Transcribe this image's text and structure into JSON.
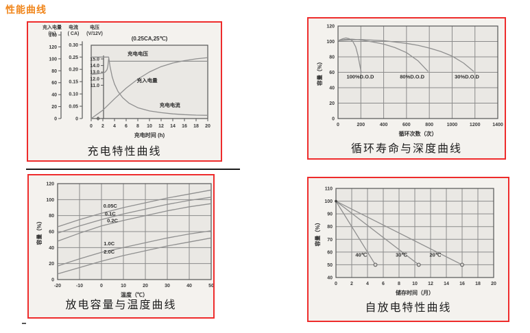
{
  "page": {
    "title": "性能曲线"
  },
  "colors": {
    "title_orange": "#f0851a",
    "panel_border_red": "#ee2b2b",
    "panel_bg": "#f4f2ee",
    "plot_bg": "#eae8e4",
    "grid_gray": "#8a8a8a",
    "curve_gray": "#8f8f8f",
    "axis_dark": "#555555"
  },
  "chart_data": [
    {
      "type": "line",
      "caption": "充电特性曲线",
      "title": "(0.25CA,25℃)",
      "xlabel": "充电时间 (h)",
      "x": {
        "min": 0,
        "max": 20,
        "step": 2
      },
      "y_axes": [
        {
          "title": "充入电量",
          "unit": "(%)",
          "ticks": [
            "0",
            "20",
            "40",
            "60",
            "80",
            "100",
            "120",
            "140"
          ]
        },
        {
          "title": "电流",
          "unit": "( CA)",
          "ticks": [
            "0",
            "0.05",
            "0.10",
            "0.15",
            "0.20",
            "0.25",
            "0.30"
          ]
        },
        {
          "title": "电压",
          "unit": "(V/12V)",
          "ticks": [
            "0",
            "11.0",
            "12.0",
            "13.0",
            "14.0",
            "15.0"
          ]
        }
      ],
      "grid": "none",
      "series": [
        {
          "name": "充电电压",
          "axis": "voltage",
          "points": [
            [
              0,
              12.65
            ],
            [
              1,
              12.72
            ],
            [
              2,
              12.85
            ],
            [
              2.4,
              13.0
            ],
            [
              2.7,
              13.35
            ],
            [
              2.85,
              13.8
            ],
            [
              3,
              15.05
            ],
            [
              3.1,
              14.65
            ],
            [
              20,
              14.65
            ]
          ],
          "label_pos": [
            8,
            15.5
          ]
        },
        {
          "name": "充入电量",
          "axis": "capacity",
          "points": [
            [
              0,
              0
            ],
            [
              2,
              14
            ],
            [
              4,
              33
            ],
            [
              6,
              51
            ],
            [
              8,
              66
            ],
            [
              10,
              78
            ],
            [
              12,
              87
            ],
            [
              14,
              93
            ],
            [
              16,
              97
            ],
            [
              18,
              100
            ],
            [
              20,
              102
            ]
          ],
          "label_pos": [
            9.6,
            61
          ]
        },
        {
          "name": "充电电流",
          "axis": "current",
          "points": [
            [
              0,
              0.25
            ],
            [
              3,
              0.25
            ],
            [
              3.25,
              0.21
            ],
            [
              3.6,
              0.17
            ],
            [
              4,
              0.14
            ],
            [
              4.6,
              0.11
            ],
            [
              5.4,
              0.085
            ],
            [
              6.5,
              0.062
            ],
            [
              8,
              0.044
            ],
            [
              10,
              0.031
            ],
            [
              12,
              0.024
            ],
            [
              14,
              0.019
            ],
            [
              16,
              0.016
            ],
            [
              18,
              0.014
            ],
            [
              20,
              0.013
            ]
          ],
          "label_pos": [
            13.5,
            0.048
          ]
        }
      ]
    },
    {
      "type": "line",
      "caption": "循环寿命与深度曲线",
      "xlabel": "循环次数（次）",
      "ylabel": "容量（%）",
      "x": {
        "min": 0,
        "max": 1400,
        "step": 200
      },
      "y": {
        "min": 0,
        "max": 120,
        "step": 20
      },
      "grid": "full",
      "series": [
        {
          "name": "100%D.O.D",
          "points": [
            [
              0,
              101
            ],
            [
              40,
              103.5
            ],
            [
              70,
              104.5
            ],
            [
              100,
              103.5
            ],
            [
              130,
              100
            ],
            [
              155,
              93
            ],
            [
              175,
              82
            ],
            [
              190,
              70
            ],
            [
              203,
              60
            ]
          ],
          "label_pos": [
            195,
            52
          ]
        },
        {
          "name": "80%D.O.D",
          "points": [
            [
              0,
              101
            ],
            [
              60,
              102.5
            ],
            [
              120,
              103
            ],
            [
              200,
              102
            ],
            [
              300,
              99.5
            ],
            [
              400,
              96.5
            ],
            [
              500,
              92
            ],
            [
              600,
              85.5
            ],
            [
              700,
              75
            ],
            [
              790,
              61
            ]
          ],
          "label_pos": [
            650,
            52
          ]
        },
        {
          "name": "30%D.O.D",
          "points": [
            [
              0,
              101
            ],
            [
              100,
              102
            ],
            [
              200,
              102.5
            ],
            [
              400,
              101
            ],
            [
              600,
              97.5
            ],
            [
              700,
              95
            ],
            [
              800,
              91.5
            ],
            [
              900,
              87
            ],
            [
              1000,
              81
            ],
            [
              1100,
              72
            ],
            [
              1190,
              61
            ]
          ],
          "label_pos": [
            1130,
            52
          ]
        }
      ]
    },
    {
      "type": "line",
      "caption": "放电容量与温度曲线",
      "xlabel": "温度（℃）",
      "ylabel": "容量（%）",
      "x": {
        "min": -20,
        "max": 50,
        "step": 10
      },
      "y": {
        "min": 0,
        "max": 120,
        "step": 20
      },
      "grid": "full",
      "series": [
        {
          "name": "0.05C",
          "points": [
            [
              -20,
              66
            ],
            [
              -10,
              75
            ],
            [
              0,
              83
            ],
            [
              10,
              90
            ],
            [
              20,
              96
            ],
            [
              30,
              102
            ],
            [
              40,
              107
            ],
            [
              50,
              112
            ]
          ],
          "label_pos": [
            4,
            90
          ]
        },
        {
          "name": "0.1C",
          "points": [
            [
              -20,
              58
            ],
            [
              -10,
              67
            ],
            [
              0,
              75
            ],
            [
              10,
              82
            ],
            [
              20,
              88
            ],
            [
              30,
              94
            ],
            [
              40,
              99
            ],
            [
              50,
              103
            ]
          ],
          "label_pos": [
            4,
            80
          ]
        },
        {
          "name": "0.2C",
          "points": [
            [
              -20,
              48
            ],
            [
              -10,
              58
            ],
            [
              0,
              67
            ],
            [
              10,
              74
            ],
            [
              20,
              80
            ],
            [
              30,
              86
            ],
            [
              40,
              91
            ],
            [
              50,
              95
            ]
          ],
          "label_pos": [
            5,
            71.5
          ]
        },
        {
          "name": "1.0C",
          "points": [
            [
              -20,
              17
            ],
            [
              -10,
              26
            ],
            [
              0,
              34
            ],
            [
              10,
              40
            ],
            [
              20,
              46
            ],
            [
              30,
              52
            ],
            [
              40,
              57
            ],
            [
              50,
              61
            ]
          ],
          "label_pos": [
            3.5,
            43
          ]
        },
        {
          "name": "2.0C",
          "points": [
            [
              -20,
              7
            ],
            [
              -10,
              15
            ],
            [
              0,
              23
            ],
            [
              10,
              30
            ],
            [
              20,
              36
            ],
            [
              30,
              42
            ],
            [
              40,
              47
            ],
            [
              50,
              52
            ]
          ],
          "label_pos": [
            3.5,
            32.5
          ]
        }
      ]
    },
    {
      "type": "line",
      "caption": "自放电特性曲线",
      "xlabel": "储存时间（月）",
      "ylabel": "容量（%）",
      "x": {
        "min": 0,
        "max": 20,
        "step": 2
      },
      "y": {
        "min": 40,
        "max": 110,
        "step": 10
      },
      "grid": "full",
      "origin_marker": {
        "x": 0,
        "y": 100
      },
      "series": [
        {
          "name": "40℃",
          "points": [
            [
              0,
              100
            ],
            [
              5,
              50
            ]
          ],
          "end_marker": true,
          "label_pos": [
            3.2,
            56.5
          ]
        },
        {
          "name": "30℃",
          "points": [
            [
              0,
              100
            ],
            [
              10.5,
              50
            ]
          ],
          "end_marker": true,
          "label_pos": [
            8.3,
            56.5
          ]
        },
        {
          "name": "20℃",
          "points": [
            [
              0,
              100
            ],
            [
              16,
              50
            ]
          ],
          "end_marker": true,
          "label_pos": [
            12.6,
            56.5
          ]
        }
      ]
    }
  ]
}
